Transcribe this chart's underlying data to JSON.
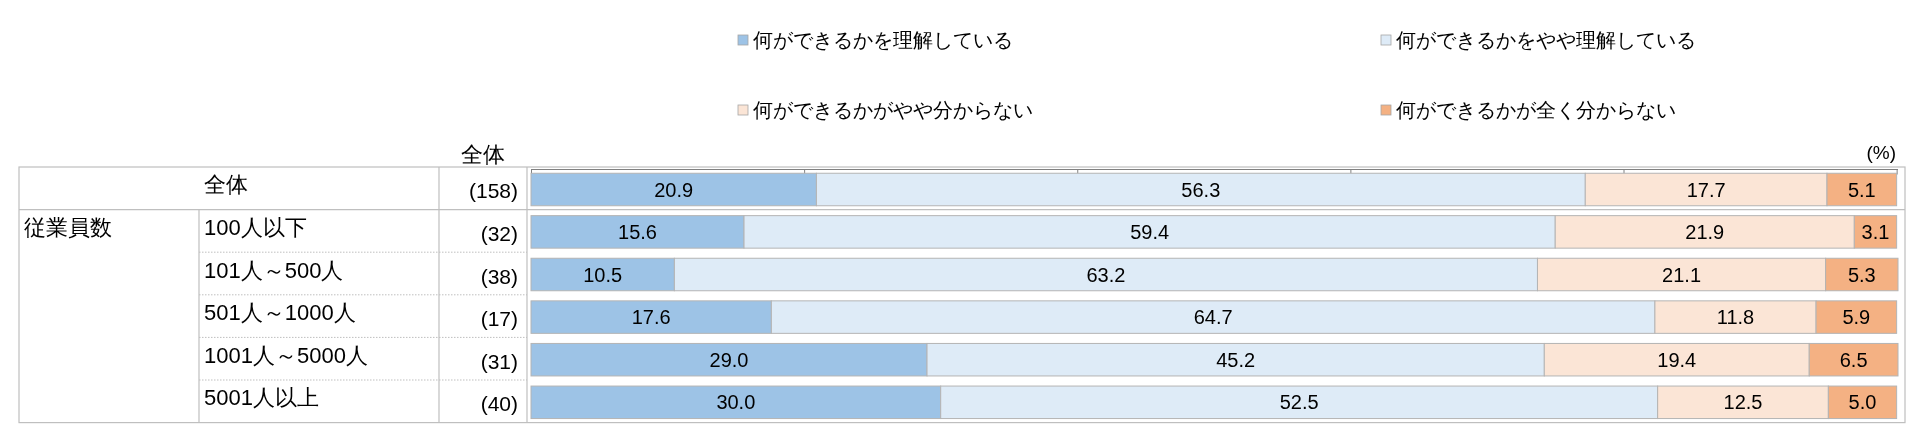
{
  "chart_data": {
    "type": "bar",
    "orientation": "horizontal",
    "stacked": true,
    "categories": [
      "全体",
      "100人以下",
      "101人～500人",
      "501人～1000人",
      "1001人～5000人",
      "5001人以上"
    ],
    "series": [
      {
        "name": "何ができるかを理解している",
        "color": "#9dc3e6",
        "values": [
          20.9,
          15.6,
          10.5,
          17.6,
          29.0,
          30.0
        ],
        "value_labels": [
          "20.9",
          "15.6",
          "10.5",
          "17.6",
          "29.0",
          "30.0"
        ]
      },
      {
        "name": "何ができるかをやや理解している",
        "color": "#deebf7",
        "values": [
          56.3,
          59.4,
          63.2,
          64.7,
          45.2,
          52.5
        ],
        "value_labels": [
          "56.3",
          "59.4",
          "63.2",
          "64.7",
          "45.2",
          "52.5"
        ]
      },
      {
        "name": "何ができるかがやや分からない",
        "color": "#fbe5d6",
        "values": [
          17.7,
          21.9,
          21.1,
          11.8,
          19.4,
          12.5
        ],
        "value_labels": [
          "17.7",
          "21.9",
          "21.1",
          "11.8",
          "19.4",
          "12.5"
        ]
      },
      {
        "name": "何ができるかが全く分からない",
        "color": "#f4b183",
        "values": [
          5.1,
          3.1,
          5.3,
          5.9,
          6.5,
          5.0
        ],
        "value_labels": [
          "5.1",
          "3.1",
          "5.3",
          "5.9",
          "6.5",
          "5.0"
        ]
      }
    ],
    "xlabel": "(%)",
    "xlim": [
      0,
      100.1
    ],
    "xticks": [
      {
        "value": 0,
        "label": null
      },
      {
        "value": 20,
        "label": null
      },
      {
        "value": 40,
        "label": null
      },
      {
        "value": 60,
        "label": null
      },
      {
        "value": 80,
        "label": null
      },
      {
        "value": 100,
        "label": null
      }
    ],
    "tick_labels": "y",
    "legend": "top",
    "annotations": [
      "全体",
      "従業員数",
      "(158)",
      "(32)",
      "(38)",
      "(17)",
      "(31)",
      "(40)"
    ]
  }
}
